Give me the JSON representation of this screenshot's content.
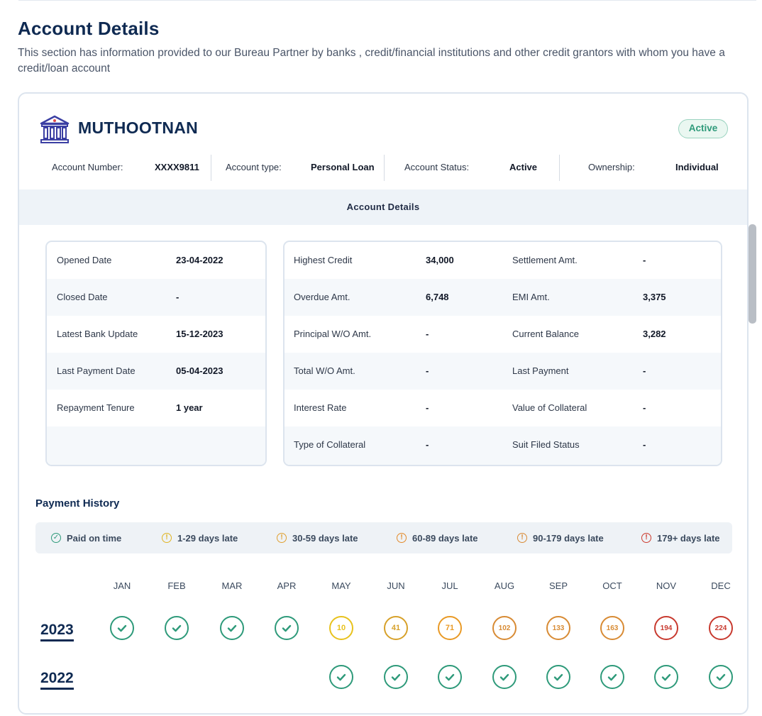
{
  "page": {
    "title": "Account Details",
    "description": "This section has information provided to our Bureau Partner by banks , credit/financial institutions and other credit grantors with whom you have a credit/loan account"
  },
  "account": {
    "bank_name": "MUTHOOTNAN",
    "status_badge": "Active",
    "account_number_label": "Account Number:",
    "account_number": "XXXX9811",
    "account_type_label": "Account type:",
    "account_type": "Personal Loan",
    "account_status_label": "Account Status:",
    "account_status": "Active",
    "ownership_label": "Ownership:",
    "ownership": "Individual",
    "section_header": "Account Details"
  },
  "details_left": [
    {
      "label": "Opened Date",
      "value": "23-04-2022"
    },
    {
      "label": "Closed Date",
      "value": "-"
    },
    {
      "label": "Latest Bank Update",
      "value": "15-12-2023"
    },
    {
      "label": "Last Payment Date",
      "value": "05-04-2023"
    },
    {
      "label": "Repayment Tenure",
      "value": "1 year"
    }
  ],
  "details_right": [
    {
      "label1": "Highest Credit",
      "value1": "34,000",
      "label2": "Settlement Amt.",
      "value2": "-"
    },
    {
      "label1": "Overdue Amt.",
      "value1": "6,748",
      "label2": "EMI Amt.",
      "value2": "3,375"
    },
    {
      "label1": "Principal W/O Amt.",
      "value1": "-",
      "label2": "Current Balance",
      "value2": "3,282"
    },
    {
      "label1": "Total W/O Amt.",
      "value1": "-",
      "label2": "Last Payment",
      "value2": "-"
    },
    {
      "label1": "Interest Rate",
      "value1": "-",
      "label2": "Value of Collateral",
      "value2": "-"
    },
    {
      "label1": "Type of Collateral",
      "value1": "-",
      "label2": "Suit Filed Status",
      "value2": "-"
    }
  ],
  "payment_history": {
    "title": "Payment History",
    "legend": [
      {
        "label": "Paid on time",
        "icon": "check-circle-icon",
        "color": "#2e9a7a"
      },
      {
        "label": "1-29 days late",
        "icon": "alert-circle-icon",
        "color": "#e0b422"
      },
      {
        "label": "30-59 days late",
        "icon": "alert-circle-icon",
        "color": "#e0a030"
      },
      {
        "label": "60-89 days late",
        "icon": "alert-circle-icon",
        "color": "#e38a2a"
      },
      {
        "label": "90-179 days late",
        "icon": "alert-circle-icon",
        "color": "#d98a35"
      },
      {
        "label": "179+ days late",
        "icon": "alert-circle-icon",
        "color": "#cc3b2e"
      }
    ],
    "months": [
      "JAN",
      "FEB",
      "MAR",
      "APR",
      "MAY",
      "JUN",
      "JUL",
      "AUG",
      "SEP",
      "OCT",
      "NOV",
      "DEC"
    ],
    "years": [
      {
        "year": "2023",
        "cells": [
          "ok",
          "ok",
          "ok",
          "ok",
          "10",
          "41",
          "71",
          "102",
          "133",
          "163",
          "194",
          "224"
        ]
      },
      {
        "year": "2022",
        "cells": [
          "",
          "",
          "",
          "",
          "ok",
          "ok",
          "ok",
          "ok",
          "ok",
          "ok",
          "ok",
          "ok"
        ]
      }
    ],
    "colors": {
      "ok": "#2e9a7a",
      "1-29": "#e8c21d",
      "30-59": "#d7a12a",
      "60-89": "#e99a26",
      "90-179": "#d88b34",
      "179+": "#c83a2f"
    }
  }
}
